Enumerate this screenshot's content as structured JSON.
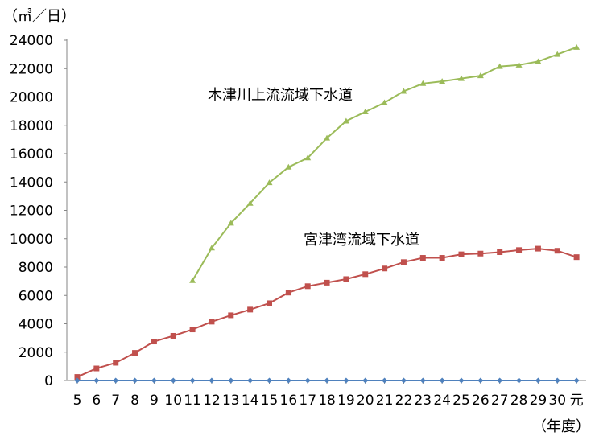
{
  "chart_data": {
    "type": "line",
    "y_unit_label": "（㎥／日）",
    "x_unit_label": "（年度）",
    "ylim": [
      0,
      24000
    ],
    "y_ticks": [
      0,
      2000,
      4000,
      6000,
      8000,
      10000,
      12000,
      14000,
      16000,
      18000,
      20000,
      22000,
      24000
    ],
    "grid": false,
    "legend": "none",
    "categories": [
      "5",
      "6",
      "7",
      "8",
      "9",
      "10",
      "11",
      "12",
      "13",
      "14",
      "15",
      "16",
      "17",
      "18",
      "19",
      "20",
      "21",
      "22",
      "23",
      "24",
      "25",
      "26",
      "27",
      "28",
      "29",
      "30",
      "元"
    ],
    "series": [
      {
        "name": "木津川上流流域下水道",
        "color": "#9bbb59",
        "marker": "triangle",
        "values": [
          null,
          null,
          null,
          null,
          null,
          null,
          7050,
          9350,
          11100,
          12500,
          13950,
          15050,
          15700,
          17100,
          18300,
          18950,
          19600,
          20400,
          20950,
          21100,
          21300,
          21500,
          22150,
          22250,
          22500,
          23000,
          23500
        ]
      },
      {
        "name": "宮津湾流域下水道",
        "color": "#c0504d",
        "marker": "square",
        "values": [
          250,
          850,
          1250,
          1950,
          2750,
          3150,
          3600,
          4150,
          4600,
          5000,
          5450,
          6200,
          6650,
          6900,
          7150,
          7500,
          7900,
          8350,
          8650,
          8650,
          8900,
          8950,
          9050,
          9200,
          9300,
          9150,
          8700
        ]
      },
      {
        "name": "",
        "color": "#4f81bd",
        "marker": "diamond",
        "values": [
          0,
          0,
          0,
          0,
          0,
          0,
          0,
          0,
          0,
          0,
          0,
          0,
          0,
          0,
          0,
          0,
          0,
          0,
          0,
          0,
          0,
          0,
          0,
          0,
          0,
          0,
          0
        ]
      }
    ]
  }
}
